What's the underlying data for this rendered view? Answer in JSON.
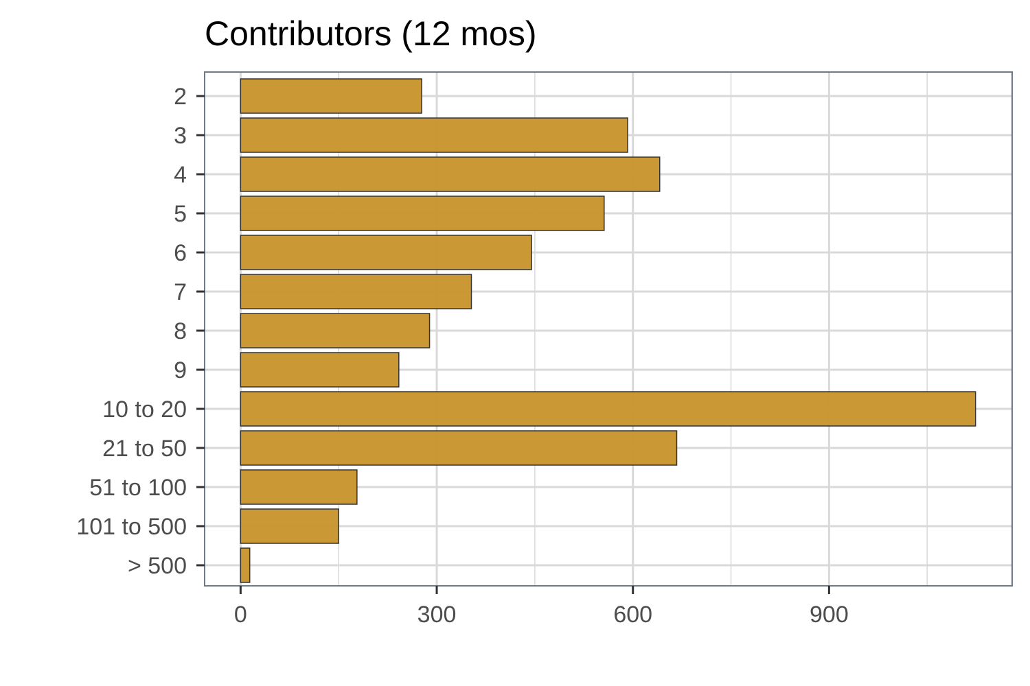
{
  "chart_data": {
    "type": "bar",
    "orientation": "horizontal",
    "title": "Contributors (12 mos)",
    "xlabel": "",
    "ylabel": "",
    "categories": [
      "2",
      "3",
      "4",
      "5",
      "6",
      "7",
      "8",
      "9",
      "10 to 20",
      "21 to 50",
      "51 to 100",
      "101 to 500",
      "> 500"
    ],
    "values": [
      277,
      592,
      641,
      556,
      445,
      353,
      289,
      242,
      1124,
      667,
      178,
      150,
      14
    ],
    "xlim": [
      -55,
      1180
    ],
    "xticks": [
      0,
      300,
      600,
      900
    ],
    "xtick_labels": [
      "0",
      "300",
      "600",
      "900"
    ],
    "grid": true,
    "legend": "none",
    "colors": {
      "bar_fill": "#c8962e",
      "bar_stroke": "#333333",
      "grid": "#d9d9d9",
      "panel_border": "#6e7a8a",
      "tick_text": "#4d4d4d"
    }
  }
}
